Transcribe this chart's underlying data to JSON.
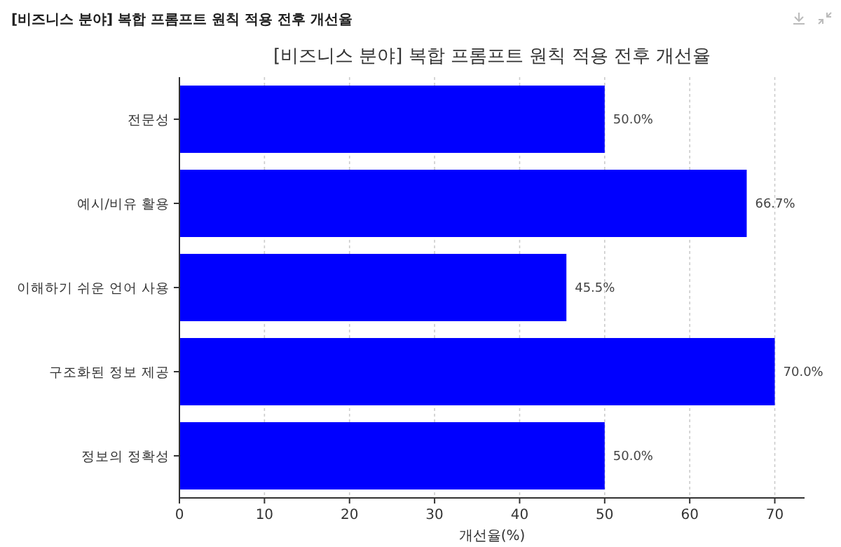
{
  "chart_data": {
    "type": "bar",
    "orientation": "horizontal",
    "title": "[비즈니스 분야] 복합 프롬프트 원칙 적용 전후 개선율",
    "xlabel": "개선율(%)",
    "annotations": [
      "[비즈니스 분야] 복합 프롬프트 원칙 적용 전후 개선율"
    ],
    "categories": [
      "전문성",
      "예시/비유 활용",
      "이해하기 쉬운 언어 사용",
      "구조화된 정보 제공",
      "정보의 정확성"
    ],
    "values": [
      50.0,
      66.7,
      45.5,
      70.0,
      50.0
    ],
    "color": "#0000ff",
    "value_labels": [
      "50.0%",
      "66.7%",
      "45.5%",
      "70.0%",
      "50.0%"
    ],
    "xlim": [
      0,
      73.5
    ],
    "xticks": [
      0,
      10,
      20,
      30,
      40,
      50,
      60,
      70
    ],
    "grid": "x"
  }
}
